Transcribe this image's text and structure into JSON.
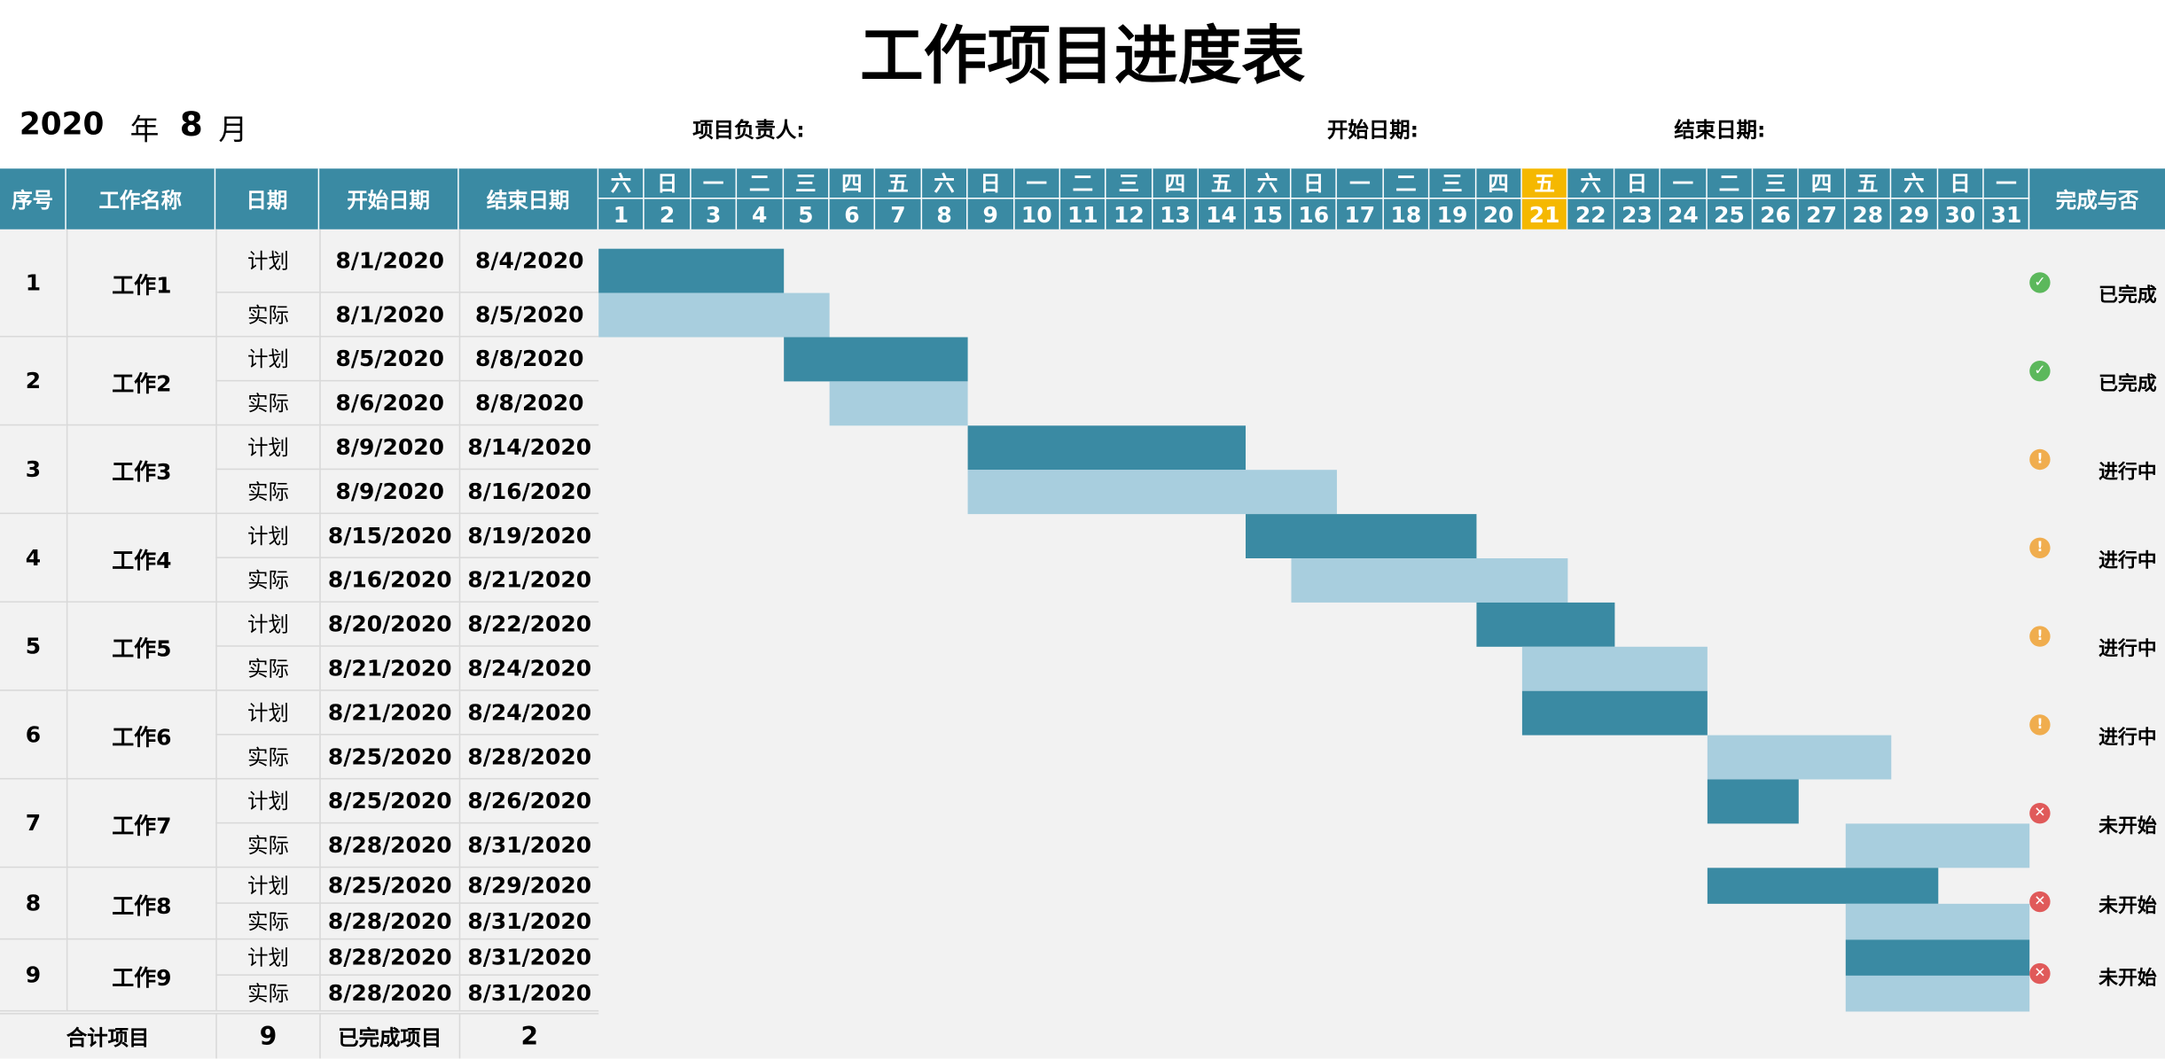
{
  "title": "工作项目进度表",
  "header": {
    "year": "2020",
    "year_unit": "年",
    "month": "8",
    "month_unit": "月",
    "manager_label": "项目负责人:",
    "start_label": "开始日期:",
    "end_label": "结束日期:"
  },
  "columns": {
    "no": "序号",
    "name": "工作名称",
    "date": "日期",
    "start": "开始日期",
    "end": "结束日期",
    "status": "完成与否"
  },
  "weekdays": [
    "六",
    "日",
    "一",
    "二",
    "三",
    "四",
    "五",
    "六",
    "日",
    "一",
    "二",
    "三",
    "四",
    "五",
    "六",
    "日",
    "一",
    "二",
    "三",
    "四",
    "五",
    "六",
    "日",
    "一",
    "二",
    "三",
    "四",
    "五",
    "六",
    "日",
    "一"
  ],
  "days": [
    "1",
    "2",
    "3",
    "4",
    "5",
    "6",
    "7",
    "8",
    "9",
    "10",
    "11",
    "12",
    "13",
    "14",
    "15",
    "16",
    "17",
    "18",
    "19",
    "20",
    "21",
    "22",
    "23",
    "24",
    "25",
    "26",
    "27",
    "28",
    "29",
    "30",
    "31"
  ],
  "highlight_day": 21,
  "plan_label": "计划",
  "actual_label": "实际",
  "colors": {
    "header": "#3a8aa3",
    "highlight": "#f5b800",
    "plan_bar": "#3a8aa3",
    "actual_bar": "#a8cede",
    "body_bg": "#f2f2f2",
    "done": "#5cb85c",
    "progress": "#f0ad4e",
    "notstarted": "#e05a5a"
  },
  "tasks": [
    {
      "no": "1",
      "name": "工作1",
      "plan_start": "8/1/2020",
      "plan_end": "8/4/2020",
      "actual_start": "8/1/2020",
      "actual_end": "8/5/2020",
      "status": "已完成",
      "status_icon": "check-circle-icon"
    },
    {
      "no": "2",
      "name": "工作2",
      "plan_start": "8/5/2020",
      "plan_end": "8/8/2020",
      "actual_start": "8/6/2020",
      "actual_end": "8/8/2020",
      "status": "已完成",
      "status_icon": "check-circle-icon"
    },
    {
      "no": "3",
      "name": "工作3",
      "plan_start": "8/9/2020",
      "plan_end": "8/14/2020",
      "actual_start": "8/9/2020",
      "actual_end": "8/16/2020",
      "status": "进行中",
      "status_icon": "warning-circle-icon"
    },
    {
      "no": "4",
      "name": "工作4",
      "plan_start": "8/15/2020",
      "plan_end": "8/19/2020",
      "actual_start": "8/16/2020",
      "actual_end": "8/21/2020",
      "status": "进行中",
      "status_icon": "warning-circle-icon"
    },
    {
      "no": "5",
      "name": "工作5",
      "plan_start": "8/20/2020",
      "plan_end": "8/22/2020",
      "actual_start": "8/21/2020",
      "actual_end": "8/24/2020",
      "status": "进行中",
      "status_icon": "warning-circle-icon"
    },
    {
      "no": "6",
      "name": "工作6",
      "plan_start": "8/21/2020",
      "plan_end": "8/24/2020",
      "actual_start": "8/25/2020",
      "actual_end": "8/28/2020",
      "status": "进行中",
      "status_icon": "warning-circle-icon"
    },
    {
      "no": "7",
      "name": "工作7",
      "plan_start": "8/25/2020",
      "plan_end": "8/26/2020",
      "actual_start": "8/28/2020",
      "actual_end": "8/31/2020",
      "status": "未开始",
      "status_icon": "cross-circle-icon"
    },
    {
      "no": "8",
      "name": "工作8",
      "plan_start": "8/25/2020",
      "plan_end": "8/29/2020",
      "actual_start": "8/28/2020",
      "actual_end": "8/31/2020",
      "status": "未开始",
      "status_icon": "cross-circle-icon"
    },
    {
      "no": "9",
      "name": "工作9",
      "plan_start": "8/28/2020",
      "plan_end": "8/31/2020",
      "actual_start": "8/28/2020",
      "actual_end": "8/31/2020",
      "status": "未开始",
      "status_icon": "cross-circle-icon"
    }
  ],
  "summary": {
    "total_label": "合计项目",
    "total_value": "9",
    "done_label": "已完成项目",
    "done_value": "2"
  }
}
